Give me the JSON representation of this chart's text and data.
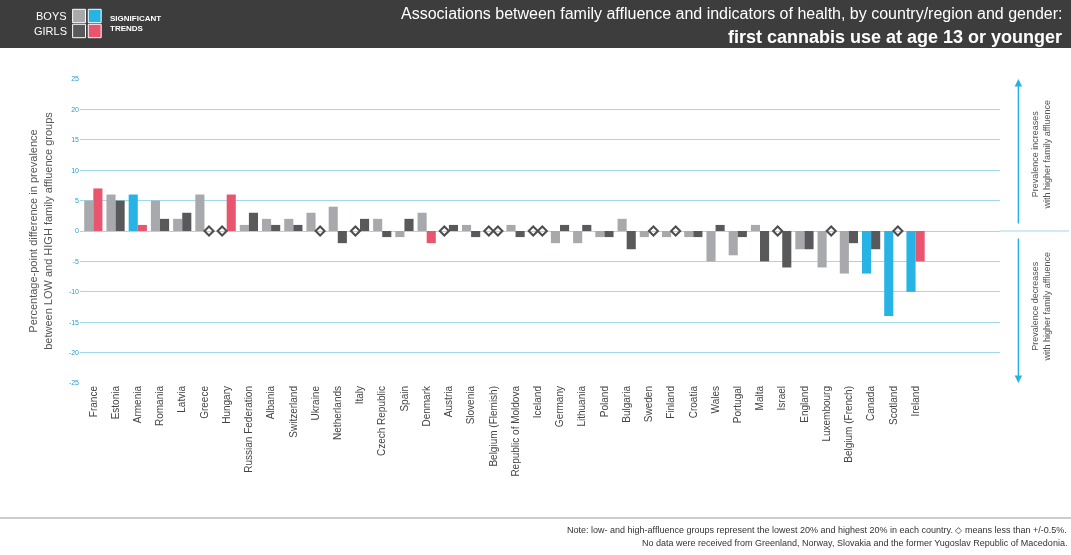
{
  "chart_data": {
    "type": "bar",
    "title": "Associations between family affluence and indicators of health, by country/region and gender:",
    "subtitle": "first cannabis use at age 13 or younger",
    "ylabel": "Percentage-point difference in prevalence\nbetween LOW and HIGH family affluence groups",
    "legend_title": "SIGNIFICANT\nTRENDS",
    "categories": [
      "France",
      "Estonia",
      "Armenia",
      "Romania",
      "Latvia",
      "Greece",
      "Hungary",
      "Russian Federation",
      "Albania",
      "Switzerland",
      "Ukraine",
      "Netherlands",
      "Italy",
      "Czech Republic",
      "Spain",
      "Denmark",
      "Austria",
      "Slovenia",
      "Belgium (Flemish)",
      "Republic of Moldova",
      "Iceland",
      "Germany",
      "Lithuania",
      "Poland",
      "Bulgaria",
      "Sweden",
      "Finland",
      "Croatia",
      "Wales",
      "Portugal",
      "Malta",
      "Israel",
      "England",
      "Luxembourg",
      "Belgium (French)",
      "Canada",
      "Scotland",
      "Ireland"
    ],
    "series": [
      {
        "name": "BOYS",
        "color": "#a7a9ac",
        "values": [
          5,
          6,
          6,
          5,
          2,
          6,
          null,
          1,
          2,
          2,
          3,
          4,
          null,
          2,
          -1,
          3,
          null,
          1,
          null,
          1,
          null,
          -2,
          -2,
          -1,
          2,
          -1,
          -1,
          -1,
          -5,
          -4,
          1,
          null,
          -3,
          -6,
          -7,
          -7,
          -14,
          -10
        ],
        "colors": [
          "#a7a9ac",
          "#a7a9ac",
          "#27b4e4",
          "#a7a9ac",
          "#a7a9ac",
          "#a7a9ac",
          "#a7a9ac",
          "#a7a9ac",
          "#a7a9ac",
          "#a7a9ac",
          "#a7a9ac",
          "#a7a9ac",
          "#a7a9ac",
          "#a7a9ac",
          "#a7a9ac",
          "#a7a9ac",
          "#a7a9ac",
          "#a7a9ac",
          "#a7a9ac",
          "#a7a9ac",
          "#a7a9ac",
          "#a7a9ac",
          "#a7a9ac",
          "#a7a9ac",
          "#a7a9ac",
          "#a7a9ac",
          "#a7a9ac",
          "#a7a9ac",
          "#a7a9ac",
          "#a7a9ac",
          "#a7a9ac",
          "#a7a9ac",
          "#a7a9ac",
          "#a7a9ac",
          "#a7a9ac",
          "#27b4e4",
          "#27b4e4",
          "#27b4e4"
        ]
      },
      {
        "name": "GIRLS",
        "color": "#58595b",
        "values": [
          7,
          5,
          1,
          2,
          3,
          null,
          6,
          3,
          1,
          1,
          null,
          -2,
          2,
          -1,
          2,
          -2,
          1,
          -1,
          null,
          -1,
          null,
          1,
          1,
          -1,
          -3,
          null,
          null,
          -1,
          1,
          -1,
          -5,
          -6,
          -3,
          null,
          -2,
          -3,
          null,
          -5
        ],
        "colors": [
          "#e8556f",
          "#58595b",
          "#e8556f",
          "#58595b",
          "#58595b",
          "#58595b",
          "#e8556f",
          "#58595b",
          "#58595b",
          "#58595b",
          "#58595b",
          "#58595b",
          "#58595b",
          "#58595b",
          "#58595b",
          "#e8556f",
          "#58595b",
          "#58595b",
          "#58595b",
          "#58595b",
          "#58595b",
          "#58595b",
          "#58595b",
          "#58595b",
          "#58595b",
          "#58595b",
          "#58595b",
          "#58595b",
          "#58595b",
          "#58595b",
          "#58595b",
          "#58595b",
          "#58595b",
          "#58595b",
          "#58595b",
          "#58595b",
          "#58595b",
          "#e8556f"
        ]
      },
      {
        "type": "scatter",
        "color": "#4d4d4d",
        "marker": "diamond",
        "values": [
          null,
          null,
          null,
          null,
          null,
          null,
          0,
          null,
          null,
          null,
          null,
          null,
          0,
          null,
          null,
          null,
          0,
          null,
          0,
          null,
          0,
          null,
          null,
          null,
          null,
          null,
          null,
          null,
          null,
          null,
          null,
          0,
          null,
          null,
          null,
          null,
          null,
          null
        ]
      },
      {
        "type": "scatter",
        "color": "#4d4d4d",
        "marker": "diamond",
        "values": [
          null,
          null,
          null,
          null,
          null,
          0,
          null,
          null,
          null,
          null,
          0,
          null,
          null,
          null,
          null,
          null,
          null,
          null,
          0,
          null,
          0,
          null,
          null,
          null,
          null,
          0,
          0,
          null,
          null,
          null,
          null,
          null,
          null,
          0,
          null,
          null,
          0,
          null
        ]
      }
    ],
    "ylim": [
      -25,
      25
    ],
    "yticks": [
      -25,
      -20,
      -15,
      -10,
      -5,
      0,
      5,
      10,
      15,
      20,
      25
    ],
    "grid": "y",
    "legend": "top left",
    "annotations": [
      "Prevalence increases\nwith higher family affluence",
      "Prevalence decreases\nwith higher family affluence",
      "Note: low- and high-affluence groups represent the lowest 20% and highest 20% in each country. ◇ means less than +/-0.5%.",
      "No data were received from Greenland, Norway, Slovakia and the former Yugoslav Republic of Macedonia."
    ]
  }
}
